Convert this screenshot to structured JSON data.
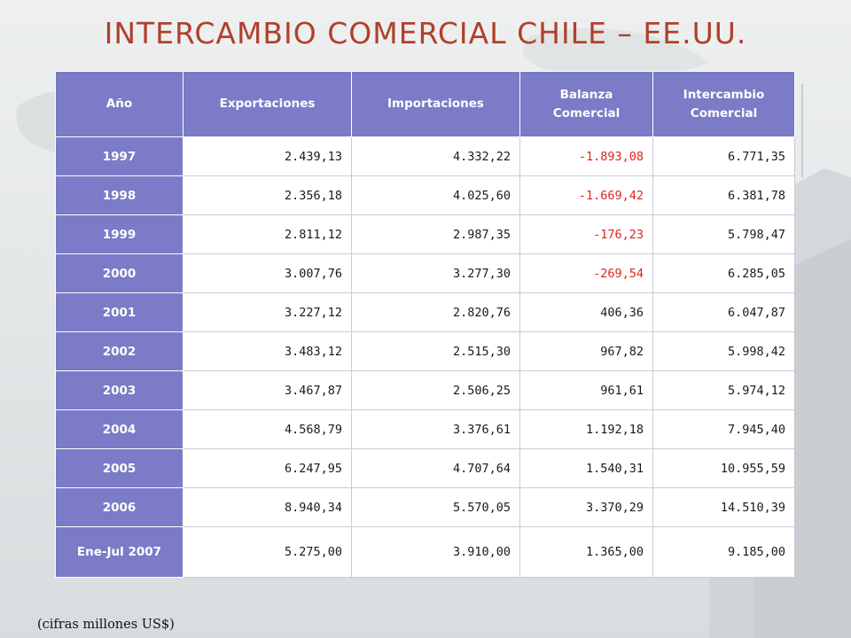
{
  "title": "INTERCAMBIO COMERCIAL CHILE – EE.UU.",
  "table": {
    "headers": {
      "year": "Año",
      "exports": "Exportaciones",
      "imports": "Importaciones",
      "balance_l1": "Balanza",
      "balance_l2": "Comercial",
      "trade_l1": "Intercambio",
      "trade_l2": "Comercial"
    },
    "rows": [
      {
        "year": "1997",
        "exports": "2.439,13",
        "imports": "4.332,22",
        "balance": "-1.893,08",
        "trade": "6.771,35"
      },
      {
        "year": "1998",
        "exports": "2.356,18",
        "imports": "4.025,60",
        "balance": "-1.669,42",
        "trade": "6.381,78"
      },
      {
        "year": "1999",
        "exports": "2.811,12",
        "imports": "2.987,35",
        "balance": "-176,23",
        "trade": "5.798,47"
      },
      {
        "year": "2000",
        "exports": "3.007,76",
        "imports": "3.277,30",
        "balance": "-269,54",
        "trade": "6.285,05"
      },
      {
        "year": "2001",
        "exports": "3.227,12",
        "imports": "2.820,76",
        "balance": "406,36",
        "trade": "6.047,87"
      },
      {
        "year": "2002",
        "exports": "3.483,12",
        "imports": "2.515,30",
        "balance": "967,82",
        "trade": "5.998,42"
      },
      {
        "year": "2003",
        "exports": "3.467,87",
        "imports": "2.506,25",
        "balance": "961,61",
        "trade": "5.974,12"
      },
      {
        "year": "2004",
        "exports": "4.568,79",
        "imports": "3.376,61",
        "balance": "1.192,18",
        "trade": "7.945,40"
      },
      {
        "year": "2005",
        "exports": "6.247,95",
        "imports": "4.707,64",
        "balance": "1.540,31",
        "trade": "10.955,59"
      },
      {
        "year": "2006",
        "exports": "8.940,34",
        "imports": "5.570,05",
        "balance": "3.370,29",
        "trade": "14.510,39"
      },
      {
        "year": "Ene-Jul 2007",
        "exports": "5.275,00",
        "imports": "3.910,00",
        "balance": "1.365,00",
        "trade": "9.185,00"
      }
    ]
  },
  "footnote": "(cifras millones US$)",
  "colors": {
    "title": "#b0402c",
    "header_bg": "#7b7bc8",
    "negative": "#e0221a"
  }
}
